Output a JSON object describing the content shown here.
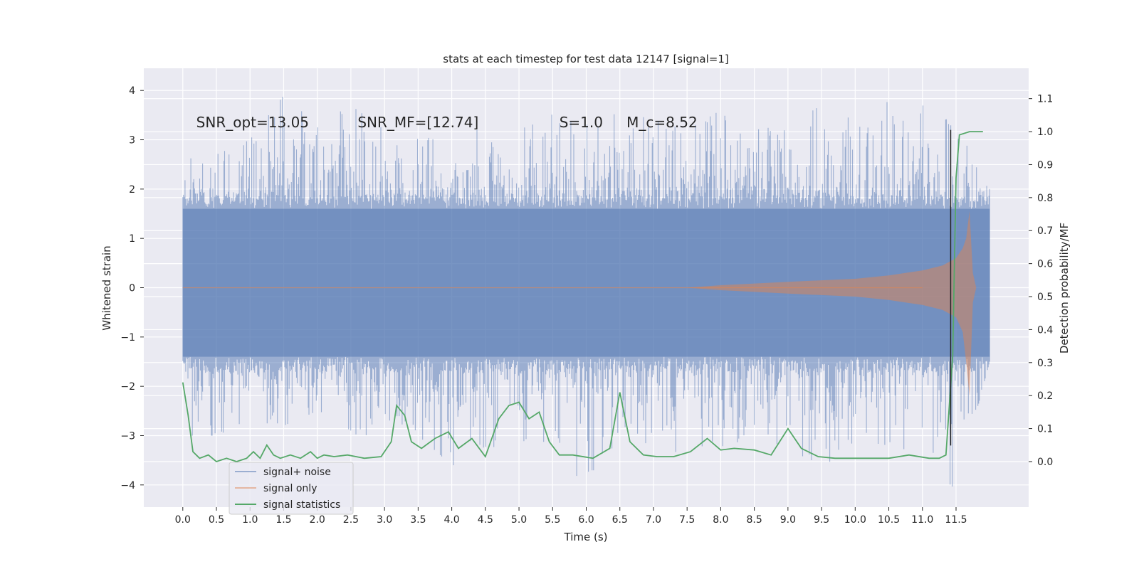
{
  "chart_data": {
    "type": "line",
    "title": "stats at each timestep for test data 12147 [signal=1]",
    "xlabel": "Time (s)",
    "ylabel": "Whitened strain",
    "ylabel_right": "Detection probability/MF",
    "xlim": [
      -0.58,
      12.58
    ],
    "ylim": [
      -4.45,
      4.45
    ],
    "ylim_right": [
      -0.138,
      1.192
    ],
    "x_ticks": [
      0.0,
      0.5,
      1.0,
      1.5,
      2.0,
      2.5,
      3.0,
      3.5,
      4.0,
      4.5,
      5.0,
      5.5,
      6.0,
      6.5,
      7.0,
      7.5,
      8.0,
      8.5,
      9.0,
      9.5,
      10.0,
      10.5,
      11.0,
      11.5
    ],
    "x_tick_labels": [
      "0.0",
      "0.5",
      "1.0",
      "1.5",
      "2.0",
      "2.5",
      "3.0",
      "3.5",
      "4.0",
      "4.5",
      "5.0",
      "5.5",
      "6.0",
      "6.5",
      "7.0",
      "7.5",
      "8.0",
      "8.5",
      "9.0",
      "9.5",
      "10.0",
      "10.5",
      "11.0",
      "11.5"
    ],
    "y_ticks": [
      4,
      3,
      2,
      1,
      0,
      -1,
      -2,
      -3,
      -4
    ],
    "y_tick_labels": [
      "4",
      "3",
      "2",
      "1",
      "0",
      "−1",
      "−2",
      "−3",
      "−4"
    ],
    "y2_ticks": [
      1.1,
      1.0,
      0.9,
      0.8,
      0.7,
      0.6,
      0.5,
      0.4,
      0.3,
      0.2,
      0.1,
      0.0
    ],
    "y2_tick_labels": [
      "1.1",
      "1.0",
      "0.9",
      "0.8",
      "0.7",
      "0.6",
      "0.5",
      "0.4",
      "0.3",
      "0.2",
      "0.1",
      "0.0"
    ],
    "grid": true,
    "background": "#eaeaf2",
    "legend_position": "lower-left",
    "annotations": [
      {
        "text": "SNR_opt=13.05",
        "x": 0.2,
        "y": 3.25
      },
      {
        "text": "SNR_MF=[12.74]",
        "x": 2.6,
        "y": 3.25
      },
      {
        "text": "S=1.0",
        "x": 5.6,
        "y": 3.25
      },
      {
        "text": "M_c=8.52",
        "x": 6.6,
        "y": 3.25
      }
    ],
    "series": [
      {
        "name": "signal+ noise",
        "color": "#4c72b0",
        "opacity": 0.5,
        "axis": "left",
        "x_range": [
          0.0,
          12.0
        ],
        "envelope": [
          [
            0.0,
            2.6,
            -3.0
          ],
          [
            0.5,
            2.7,
            -3.0
          ],
          [
            1.0,
            3.0,
            -2.7
          ],
          [
            1.5,
            3.9,
            -2.8
          ],
          [
            2.0,
            3.3,
            -2.5
          ],
          [
            2.5,
            3.7,
            -2.9
          ],
          [
            3.0,
            3.2,
            -3.4
          ],
          [
            3.5,
            3.1,
            -3.0
          ],
          [
            4.0,
            2.9,
            -3.6
          ],
          [
            4.5,
            3.3,
            -3.6
          ],
          [
            5.0,
            3.4,
            -3.2
          ],
          [
            5.5,
            3.6,
            -3.1
          ],
          [
            6.0,
            3.3,
            -4.1
          ],
          [
            6.5,
            3.6,
            -3.0
          ],
          [
            7.0,
            3.4,
            -3.2
          ],
          [
            7.5,
            3.2,
            -3.4
          ],
          [
            8.0,
            3.6,
            -3.3
          ],
          [
            8.5,
            3.2,
            -3.1
          ],
          [
            9.0,
            3.3,
            -3.2
          ],
          [
            9.5,
            3.7,
            -3.7
          ],
          [
            10.0,
            3.4,
            -3.1
          ],
          [
            10.5,
            4.1,
            -3.2
          ],
          [
            11.0,
            3.7,
            -3.5
          ],
          [
            11.5,
            3.3,
            -4.1
          ],
          [
            12.0,
            2.0,
            -1.5
          ]
        ]
      },
      {
        "name": "signal only",
        "color": "#dd8452",
        "opacity": 0.5,
        "axis": "left",
        "x": [
          0.0,
          7.5,
          8.0,
          9.0,
          10.0,
          10.5,
          11.0,
          11.3,
          11.5,
          11.6,
          11.65,
          11.7,
          11.75,
          11.8
        ],
        "amplitude": [
          0.0,
          0.0,
          0.05,
          0.12,
          0.18,
          0.25,
          0.35,
          0.45,
          0.6,
          0.8,
          1.0,
          1.55,
          0.3,
          0.0
        ],
        "amplitude_neg": [
          0.0,
          0.0,
          0.05,
          0.12,
          0.18,
          0.25,
          0.35,
          0.45,
          0.6,
          0.9,
          1.5,
          2.2,
          0.3,
          0.0
        ]
      },
      {
        "name": "signal statistics",
        "color": "#55a868",
        "opacity": 1.0,
        "axis": "right",
        "x": [
          0.0,
          0.08,
          0.15,
          0.25,
          0.38,
          0.5,
          0.65,
          0.8,
          0.95,
          1.05,
          1.15,
          1.25,
          1.35,
          1.45,
          1.6,
          1.75,
          1.9,
          2.0,
          2.1,
          2.25,
          2.45,
          2.7,
          2.95,
          3.1,
          3.18,
          3.3,
          3.4,
          3.55,
          3.75,
          3.95,
          4.1,
          4.3,
          4.5,
          4.7,
          4.85,
          5.0,
          5.15,
          5.3,
          5.45,
          5.6,
          5.8,
          6.1,
          6.35,
          6.5,
          6.65,
          6.85,
          7.05,
          7.3,
          7.55,
          7.8,
          8.0,
          8.2,
          8.5,
          8.75,
          9.0,
          9.2,
          9.45,
          9.7,
          10.0,
          10.5,
          10.8,
          11.1,
          11.25,
          11.35,
          11.45,
          11.5,
          11.55,
          11.7,
          11.9
        ],
        "y": [
          0.24,
          0.14,
          0.03,
          0.01,
          0.02,
          0.0,
          0.01,
          0.0,
          0.01,
          0.03,
          0.01,
          0.05,
          0.02,
          0.01,
          0.02,
          0.01,
          0.03,
          0.01,
          0.02,
          0.015,
          0.02,
          0.01,
          0.015,
          0.06,
          0.17,
          0.14,
          0.06,
          0.04,
          0.07,
          0.09,
          0.04,
          0.07,
          0.015,
          0.13,
          0.17,
          0.18,
          0.13,
          0.15,
          0.06,
          0.02,
          0.02,
          0.01,
          0.04,
          0.21,
          0.06,
          0.02,
          0.015,
          0.015,
          0.03,
          0.07,
          0.035,
          0.04,
          0.035,
          0.02,
          0.1,
          0.04,
          0.015,
          0.01,
          0.01,
          0.01,
          0.02,
          0.01,
          0.01,
          0.02,
          0.32,
          0.86,
          0.99,
          1.0,
          1.0
        ]
      }
    ],
    "vertical_line": {
      "x": 11.42,
      "color": "#262626"
    },
    "legend": [
      "signal+ noise",
      "signal only",
      "signal statistics"
    ]
  }
}
